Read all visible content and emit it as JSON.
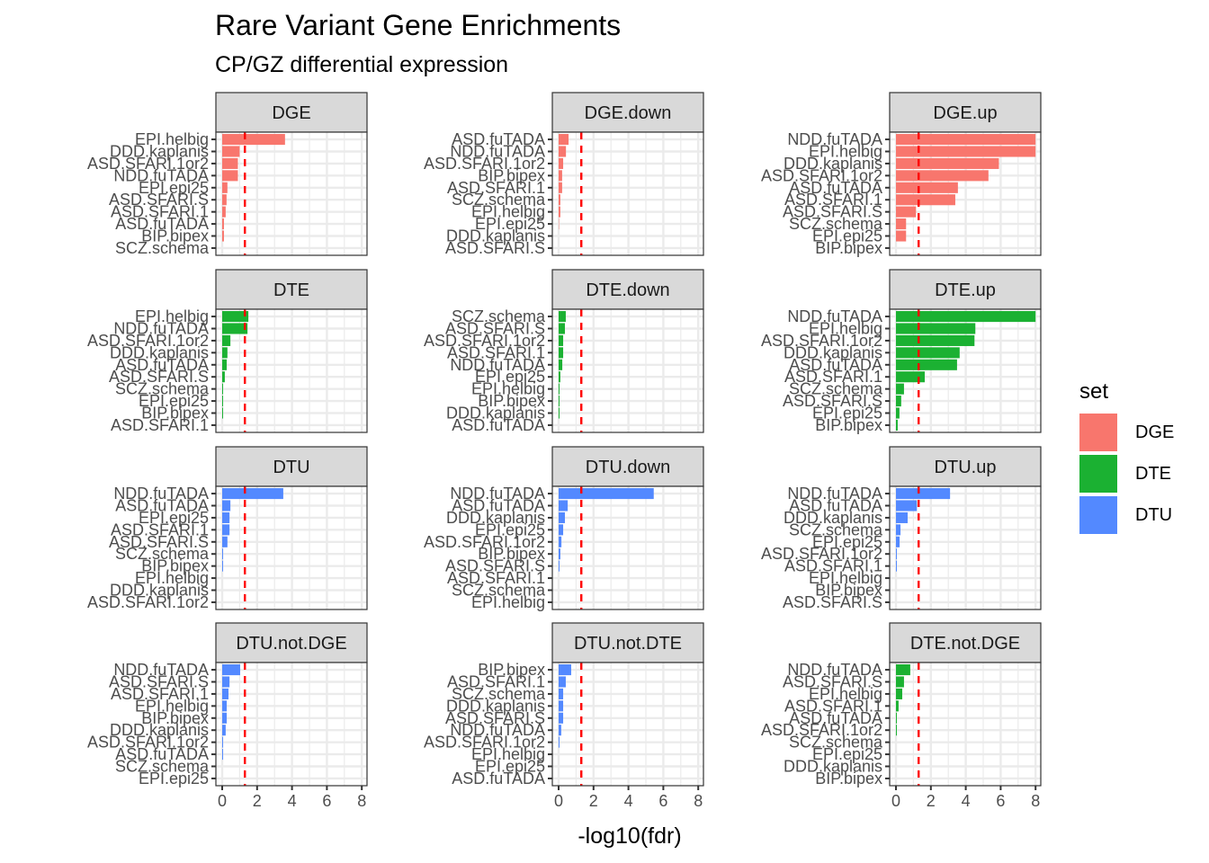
{
  "chart_data": {
    "type": "bar",
    "orientation": "horizontal",
    "title": "Rare Variant Gene Enrichments",
    "subtitle": "CP/GZ differential expression",
    "xlabel": "-log10(fdr)",
    "ylabel": "",
    "xlim": [
      0,
      8
    ],
    "x_ticks": [
      0,
      2,
      4,
      6,
      8
    ],
    "reference_line": {
      "value": 1.3,
      "style": "dashed",
      "color": "#FF0000"
    },
    "grid": true,
    "legend": {
      "title": "set",
      "placement": "right",
      "entries": [
        {
          "label": "DGE",
          "color": "#F8766D"
        },
        {
          "label": "DTE",
          "color": "#1BB132"
        },
        {
          "label": "DTU",
          "color": "#5389FF"
        }
      ]
    },
    "facets": [
      {
        "name": "DGE",
        "set": "DGE",
        "categories": [
          "EPI.helbig",
          "DDD.kaplanis",
          "ASD.SFARI.1or2",
          "NDD.fuTADA",
          "EPI.epi25",
          "ASD.SFARI.S",
          "ASD.SFARI.1",
          "ASD.fuTADA",
          "BIP.bipex",
          "SCZ.schema"
        ],
        "values": [
          3.6,
          1.0,
          0.9,
          0.9,
          0.3,
          0.25,
          0.2,
          0.1,
          0.1,
          0.0
        ]
      },
      {
        "name": "DGE.down",
        "set": "DGE",
        "categories": [
          "ASD.fuTADA",
          "NDD.fuTADA",
          "ASD.SFARI.1or2",
          "BIP.bipex",
          "ASD.SFARI.1",
          "SCZ.schema",
          "EPI.helbig",
          "EPI.epi25",
          "DDD.kaplanis",
          "ASD.SFARI.S"
        ],
        "values": [
          0.57,
          0.42,
          0.26,
          0.2,
          0.2,
          0.1,
          0.1,
          0.02,
          0.0,
          0.0
        ]
      },
      {
        "name": "DGE.up",
        "set": "DGE",
        "categories": [
          "NDD.fuTADA",
          "EPI.helbig",
          "DDD.kaplanis",
          "ASD.SFARI.1or2",
          "ASD.fuTADA",
          "ASD.SFARI.1",
          "ASD.SFARI.S",
          "SCZ.schema",
          "EPI.epi25",
          "BIP.bipex"
        ],
        "values": [
          8.0,
          8.0,
          5.9,
          5.3,
          3.55,
          3.4,
          1.15,
          0.58,
          0.58,
          0.0
        ]
      },
      {
        "name": "DTE",
        "set": "DTE",
        "categories": [
          "EPI.helbig",
          "NDD.fuTADA",
          "ASD.SFARI.1or2",
          "DDD.kaplanis",
          "ASD.fuTADA",
          "ASD.SFARI.S",
          "SCZ.schema",
          "EPI.epi25",
          "BIP.bipex",
          "ASD.SFARI.1"
        ],
        "values": [
          1.5,
          1.45,
          0.47,
          0.3,
          0.26,
          0.15,
          0.05,
          0.05,
          0.05,
          0.0
        ]
      },
      {
        "name": "DTE.down",
        "set": "DTE",
        "categories": [
          "SCZ.schema",
          "ASD.SFARI.S",
          "ASD.SFARI.1or2",
          "ASD.SFARI.1",
          "NDD.fuTADA",
          "EPI.epi25",
          "EPI.helbig",
          "BIP.bipex",
          "DDD.kaplanis",
          "ASD.fuTADA"
        ],
        "values": [
          0.41,
          0.36,
          0.26,
          0.26,
          0.21,
          0.1,
          0.05,
          0.05,
          0.05,
          0.0
        ]
      },
      {
        "name": "DTE.up",
        "set": "DTE",
        "categories": [
          "NDD.fuTADA",
          "EPI.helbig",
          "ASD.SFARI.1or2",
          "DDD.kaplanis",
          "ASD.fuTADA",
          "ASD.SFARI.1",
          "SCZ.schema",
          "ASD.SFARI.S",
          "EPI.epi25",
          "BIP.bipex"
        ],
        "values": [
          8.0,
          4.55,
          4.5,
          3.65,
          3.5,
          1.65,
          0.46,
          0.3,
          0.2,
          0.1
        ]
      },
      {
        "name": "DTU",
        "set": "DTU",
        "categories": [
          "NDD.fuTADA",
          "ASD.fuTADA",
          "EPI.epi25",
          "ASD.SFARI.1",
          "ASD.SFARI.S",
          "SCZ.schema",
          "BIP.bipex",
          "EPI.helbig",
          "DDD.kaplanis",
          "ASD.SFARI.1or2"
        ],
        "values": [
          3.5,
          0.47,
          0.42,
          0.42,
          0.3,
          0.05,
          0.05,
          0.0,
          0.0,
          0.0
        ]
      },
      {
        "name": "DTU.down",
        "set": "DTU",
        "categories": [
          "NDD.fuTADA",
          "ASD.fuTADA",
          "DDD.kaplanis",
          "EPI.epi25",
          "ASD.SFARI.1or2",
          "BIP.bipex",
          "ASD.SFARI.S",
          "ASD.SFARI.1",
          "SCZ.schema",
          "EPI.helbig"
        ],
        "values": [
          5.45,
          0.52,
          0.36,
          0.26,
          0.16,
          0.1,
          0.05,
          0.0,
          0.0,
          0.0
        ]
      },
      {
        "name": "DTU.up",
        "set": "DTU",
        "categories": [
          "NDD.fuTADA",
          "ASD.fuTADA",
          "DDD.kaplanis",
          "SCZ.schema",
          "EPI.epi25",
          "ASD.SFARI.1or2",
          "ASD.SFARI.1",
          "EPI.helbig",
          "BIP.bipex",
          "ASD.SFARI.S"
        ],
        "values": [
          3.1,
          1.2,
          0.67,
          0.26,
          0.21,
          0.05,
          0.05,
          0.0,
          0.0,
          0.0
        ]
      },
      {
        "name": "DTU.not.DGE",
        "set": "DTU",
        "categories": [
          "NDD.fuTADA",
          "ASD.SFARI.S",
          "ASD.SFARI.1",
          "EPI.helbig",
          "BIP.bipex",
          "DDD.kaplanis",
          "ASD.SFARI.1or2",
          "ASD.fuTADA",
          "SCZ.schema",
          "EPI.epi25"
        ],
        "values": [
          1.03,
          0.42,
          0.36,
          0.26,
          0.26,
          0.2,
          0.05,
          0.05,
          0.0,
          0.0
        ]
      },
      {
        "name": "DTU.not.DTE",
        "set": "DTU",
        "categories": [
          "BIP.bipex",
          "ASD.SFARI.1",
          "SCZ.schema",
          "DDD.kaplanis",
          "ASD.SFARI.S",
          "NDD.fuTADA",
          "ASD.SFARI.1or2",
          "EPI.helbig",
          "EPI.epi25",
          "ASD.fuTADA"
        ],
        "values": [
          0.72,
          0.41,
          0.26,
          0.26,
          0.26,
          0.15,
          0.05,
          0.0,
          0.0,
          0.0
        ]
      },
      {
        "name": "DTE.not.DGE",
        "set": "DTE",
        "categories": [
          "NDD.fuTADA",
          "ASD.SFARI.S",
          "EPI.helbig",
          "ASD.SFARI.1",
          "ASD.fuTADA",
          "ASD.SFARI.1or2",
          "SCZ.schema",
          "EPI.epi25",
          "DDD.kaplanis",
          "BIP.bipex"
        ],
        "values": [
          0.82,
          0.46,
          0.36,
          0.15,
          0.05,
          0.05,
          0.0,
          0.0,
          0.0,
          0.0
        ]
      }
    ]
  }
}
